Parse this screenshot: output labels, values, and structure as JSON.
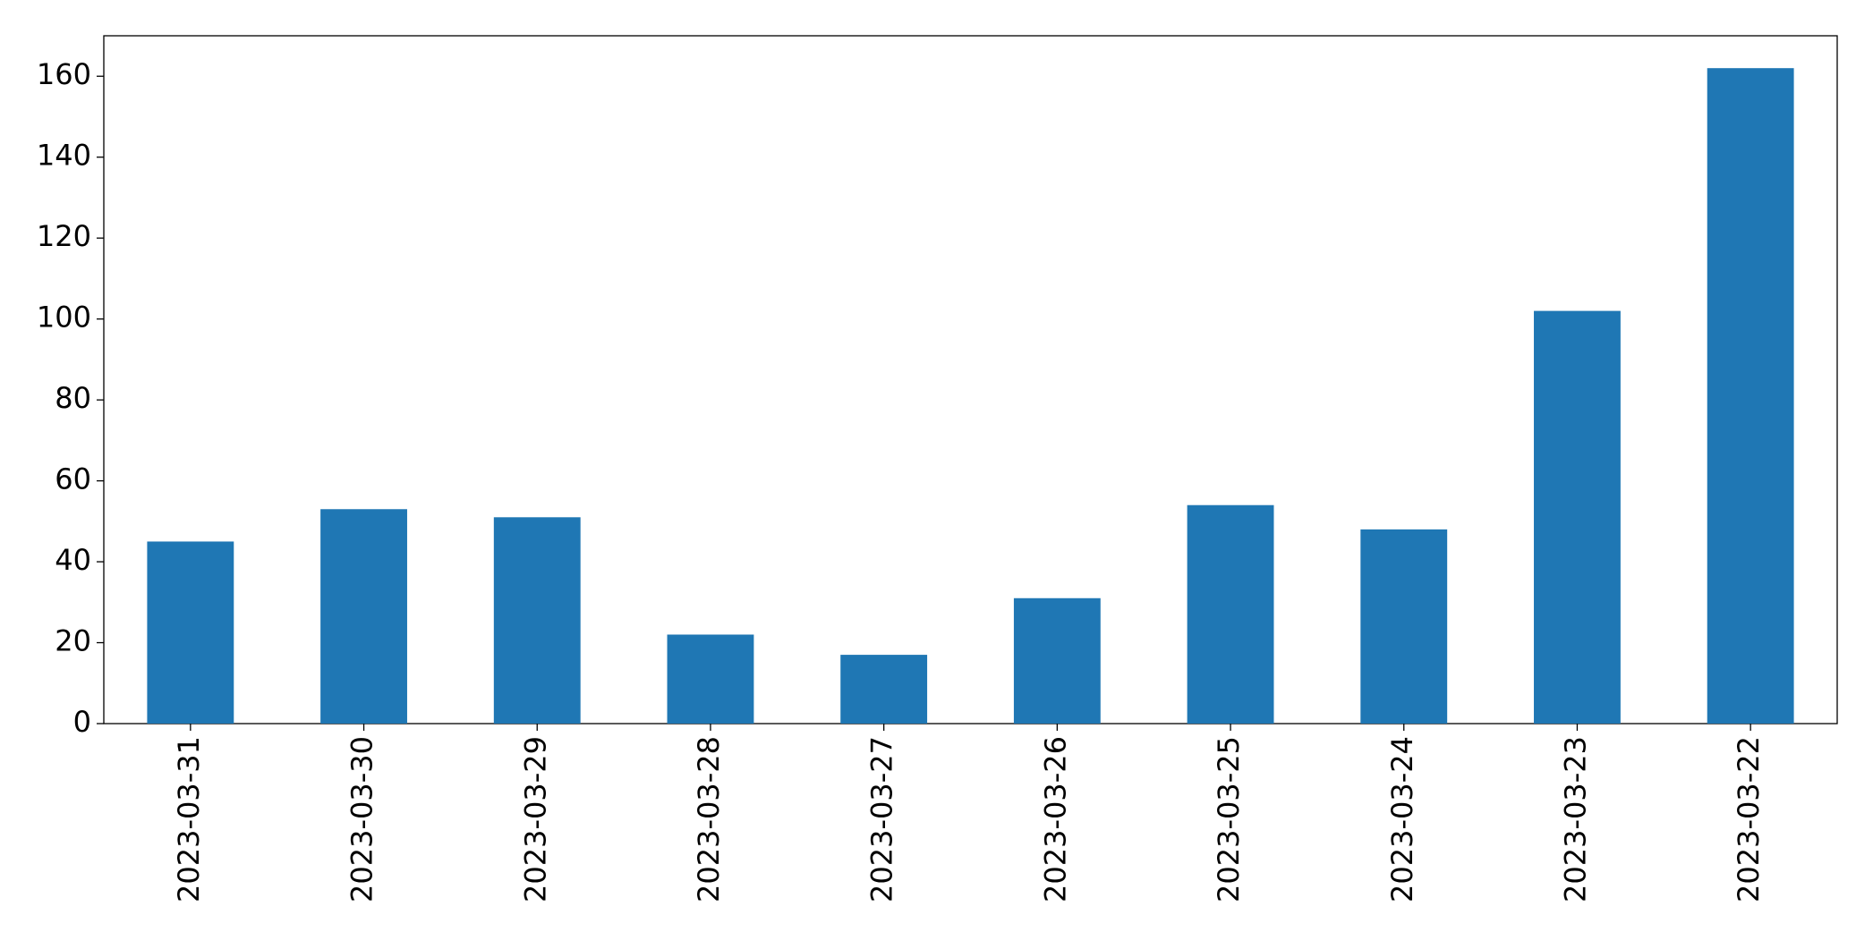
{
  "chart_data": {
    "type": "bar",
    "categories": [
      "2023-03-31",
      "2023-03-30",
      "2023-03-29",
      "2023-03-28",
      "2023-03-27",
      "2023-03-26",
      "2023-03-25",
      "2023-03-24",
      "2023-03-23",
      "2023-03-22"
    ],
    "values": [
      45,
      53,
      51,
      22,
      17,
      31,
      54,
      48,
      102,
      162
    ],
    "color": "#1f77b4",
    "ylim": [
      0,
      170
    ],
    "yticks": [
      0,
      20,
      40,
      60,
      80,
      100,
      120,
      140,
      160
    ],
    "grid": false
  }
}
